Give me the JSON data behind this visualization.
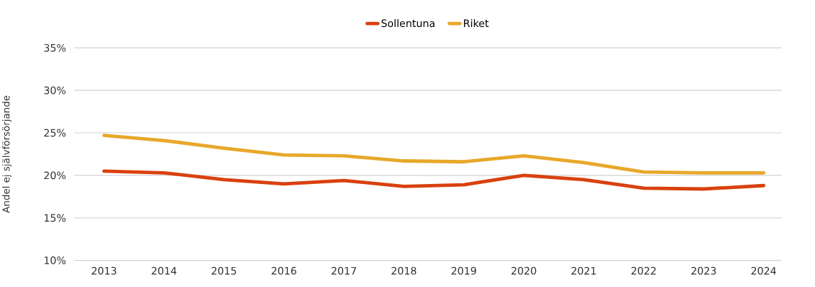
{
  "chart_data": {
    "type": "line",
    "ylabel": "Andel ej självförsörjande",
    "categories": [
      "2013",
      "2014",
      "2015",
      "2016",
      "2017",
      "2018",
      "2019",
      "2020",
      "2021",
      "2022",
      "2023",
      "2024"
    ],
    "series": [
      {
        "name": "Sollentuna",
        "color": "#d9410e",
        "values": [
          20.5,
          20.3,
          19.5,
          19.0,
          19.4,
          18.7,
          18.9,
          20.0,
          19.5,
          18.5,
          18.4,
          18.8
        ]
      },
      {
        "name": "Riket",
        "color": "#e8a82a",
        "values": [
          24.7,
          24.1,
          23.2,
          22.4,
          22.3,
          21.7,
          21.6,
          22.3,
          21.5,
          20.4,
          20.3,
          20.3
        ]
      }
    ],
    "ylim": [
      10,
      35
    ],
    "yticks": [
      {
        "value": 10,
        "label": "10%"
      },
      {
        "value": 15,
        "label": "15%"
      },
      {
        "value": 20,
        "label": "20%"
      },
      {
        "value": 25,
        "label": "25%"
      },
      {
        "value": 30,
        "label": "30%"
      },
      {
        "value": 35,
        "label": "35%"
      }
    ],
    "grid": "y",
    "legend": "top",
    "marker": "none",
    "line_style": "solid"
  }
}
